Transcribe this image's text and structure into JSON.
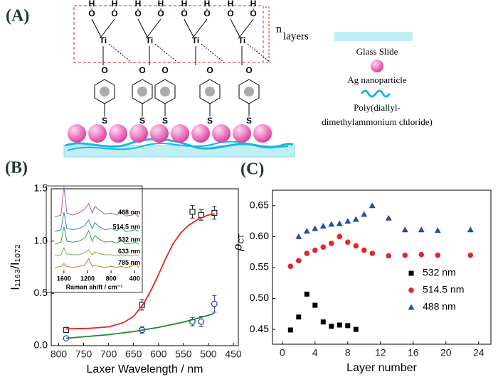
{
  "diagram": {
    "panel_label": "(A)",
    "n": "n",
    "atoms": {
      "O": "O",
      "H": "H",
      "Ti": "Ti",
      "S": "S"
    },
    "legend": {
      "layers": "layers",
      "glass": "Glass Slide",
      "ag": "Ag nanoparticle",
      "poly1": "Poly(diallyl-",
      "poly2": "dimethylammonium chloride)"
    }
  },
  "chart_data": [
    {
      "type": "errorbar",
      "panel_label": "(B)",
      "x_label": "Laxer Wavelength / nm",
      "y_label": "I₁₁₆₃/I₁₀₇₂",
      "xlim": [
        815,
        440
      ],
      "xticks": [
        800,
        750,
        700,
        650,
        600,
        550,
        500,
        450
      ],
      "ylim": [
        0,
        1.5
      ],
      "yticks": [
        {
          "value": 0,
          "label": "0.0"
        },
        0.5,
        {
          "value": 1,
          "label": "1.0"
        },
        1.5
      ],
      "series": [
        {
          "marker": "square",
          "filled": false,
          "color": "#222222",
          "x": [
            785,
            633,
            532,
            514.5,
            488
          ],
          "values": [
            0.15,
            0.39,
            1.28,
            1.25,
            1.27
          ],
          "errors": [
            0.02,
            0.05,
            0.06,
            0.05,
            0.06
          ]
        },
        {
          "marker": "circle",
          "filled": false,
          "color": "#2233bb",
          "x": [
            785,
            633,
            532,
            514.5,
            488
          ],
          "values": [
            0.07,
            0.15,
            0.23,
            0.23,
            0.4
          ],
          "errors": [
            0.01,
            0.03,
            0.04,
            0.05,
            0.08
          ]
        },
        {
          "marker": "line",
          "color": "#e8231f",
          "x": [
            785,
            740,
            700,
            670,
            650,
            630,
            615,
            600,
            585,
            570,
            555,
            540,
            520,
            500,
            488
          ],
          "values": [
            0.16,
            0.165,
            0.18,
            0.22,
            0.28,
            0.4,
            0.53,
            0.68,
            0.84,
            0.98,
            1.08,
            1.15,
            1.21,
            1.25,
            1.26
          ]
        },
        {
          "marker": "line",
          "color": "#1a8a2a",
          "x": [
            785,
            750,
            700,
            650,
            600,
            550,
            500,
            488
          ],
          "values": [
            0.07,
            0.085,
            0.105,
            0.135,
            0.175,
            0.225,
            0.29,
            0.31
          ]
        }
      ]
    },
    {
      "type": "line",
      "x_label": "Raman shift / cm⁻¹",
      "xlim": [
        1900,
        270
      ],
      "xticks": [
        1600,
        1200,
        800,
        400
      ],
      "ylim": [
        0,
        9
      ],
      "x": [
        1750,
        1650,
        1600,
        1550,
        1450,
        1350,
        1250,
        1180,
        1120,
        1075,
        1000,
        900,
        800,
        700,
        630,
        550,
        450,
        390,
        330
      ],
      "series": [
        {
          "name": "488 nm",
          "color": "#9b59d0",
          "values": [
            5.8,
            6.0,
            8.9,
            6.2,
            6.0,
            6.2,
            6.6,
            7.2,
            6.2,
            6.9,
            6.5,
            6.1,
            6.2,
            6.0,
            6.3,
            5.9,
            6.0,
            6.2,
            5.8
          ]
        },
        {
          "name": "514.5 nm",
          "color": "#3d7fc1",
          "values": [
            4.3,
            4.5,
            6.3,
            4.6,
            4.5,
            4.6,
            4.9,
            5.5,
            4.6,
            5.2,
            4.8,
            4.5,
            4.6,
            4.4,
            4.7,
            4.3,
            4.4,
            4.5,
            4.3
          ]
        },
        {
          "name": "532 nm",
          "color": "#2aa84a",
          "values": [
            3.0,
            3.2,
            4.8,
            3.3,
            3.2,
            3.3,
            3.6,
            4.4,
            3.3,
            3.9,
            3.5,
            3.2,
            3.3,
            3.1,
            3.4,
            3.0,
            3.1,
            3.2,
            3.0
          ]
        },
        {
          "name": "633 nm",
          "color": "#7cb342",
          "values": [
            1.8,
            1.9,
            2.6,
            2.0,
            1.9,
            1.9,
            2.1,
            2.4,
            1.9,
            2.2,
            2.0,
            1.9,
            1.9,
            1.8,
            1.9,
            1.8,
            1.8,
            1.9,
            1.8
          ]
        },
        {
          "name": "785 nm",
          "color": "#c9751f",
          "values": [
            0.6,
            0.7,
            1.0,
            0.7,
            0.6,
            0.7,
            0.8,
            1.5,
            0.7,
            0.8,
            0.7,
            0.6,
            0.7,
            0.6,
            0.7,
            0.6,
            0.7,
            1.0,
            0.6
          ]
        }
      ]
    },
    {
      "type": "scatter",
      "panel_label": "(C)",
      "x_label": "Layer number",
      "y_label": "ρ",
      "y_label_subscript": "CT",
      "xlim": [
        -1.2,
        25.5
      ],
      "xticks": [
        0,
        4,
        8,
        12,
        16,
        20,
        24
      ],
      "ylim": [
        0.426,
        0.675
      ],
      "yticks": [
        0.45,
        {
          "value": 0.5,
          "label": "0.50"
        },
        0.55,
        {
          "value": 0.6,
          "label": "0.60"
        },
        0.65
      ],
      "legend": "lower right",
      "series": [
        {
          "name": "532 nm",
          "marker": "square",
          "filled": true,
          "color": "#000000",
          "x": [
            1,
            2,
            3,
            4,
            5,
            6,
            7,
            8,
            9
          ],
          "values": [
            0.449,
            0.47,
            0.507,
            0.489,
            0.462,
            0.455,
            0.457,
            0.456,
            0.45
          ]
        },
        {
          "name": "514.5 nm",
          "marker": "circle",
          "filled": true,
          "color": "#e0282a",
          "x": [
            1,
            2,
            3,
            4,
            5,
            6,
            7,
            8,
            9,
            10,
            11,
            13,
            15,
            17,
            19,
            23
          ],
          "values": [
            0.552,
            0.561,
            0.573,
            0.578,
            0.583,
            0.589,
            0.6,
            0.591,
            0.585,
            0.578,
            0.573,
            0.569,
            0.57,
            0.571,
            0.57,
            0.57
          ]
        },
        {
          "name": "488 nm",
          "marker": "triangle",
          "filled": true,
          "color": "#2c4a9e",
          "x": [
            2,
            3,
            4,
            5,
            6,
            7,
            8,
            9,
            10,
            11,
            13,
            15,
            17,
            19,
            23
          ],
          "values": [
            0.6,
            0.609,
            0.613,
            0.617,
            0.62,
            0.621,
            0.625,
            0.628,
            0.636,
            0.65,
            0.63,
            0.611,
            0.611,
            0.61,
            0.611
          ]
        }
      ]
    }
  ]
}
